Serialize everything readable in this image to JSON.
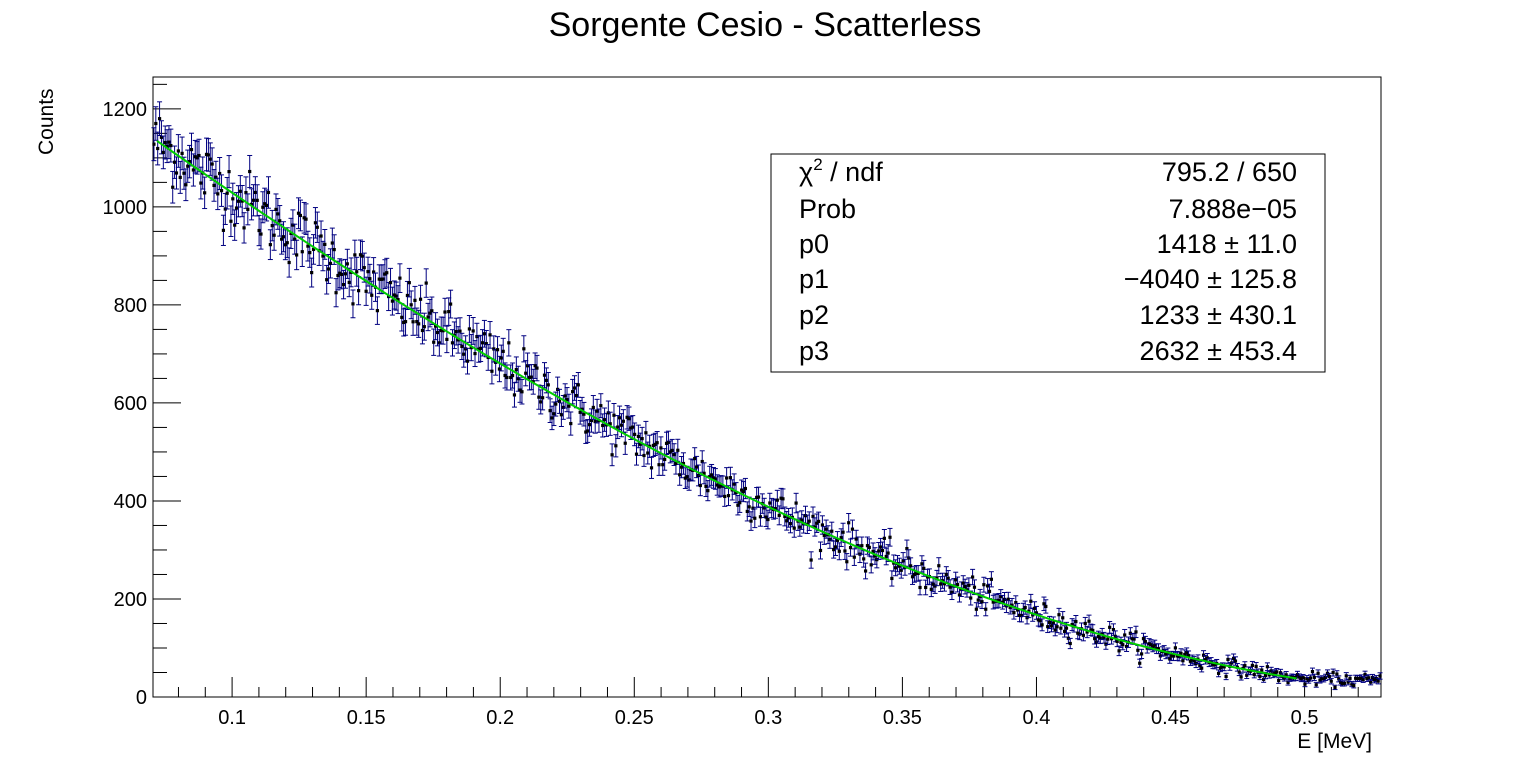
{
  "chart_data": {
    "type": "scatter",
    "title": "Sorgente Cesio - Scatterless",
    "xlabel": "E [MeV]",
    "ylabel": "Counts",
    "xlim": [
      0.0705,
      0.5285
    ],
    "ylim": [
      0,
      1265
    ],
    "x_ticks": [
      "0.1",
      "0.15",
      "0.2",
      "0.25",
      "0.3",
      "0.35",
      "0.4",
      "0.45",
      "0.5"
    ],
    "y_ticks": [
      "0",
      "200",
      "400",
      "600",
      "800",
      "1000",
      "1200"
    ],
    "grid": false,
    "series": [
      {
        "kind": "histogram-points-with-errors",
        "x_range": [
          0.0705,
          0.5285
        ],
        "points_shown": 654,
        "approx_points": [
          [
            0.072,
            1090
          ],
          [
            0.075,
            1170
          ],
          [
            0.08,
            1060
          ],
          [
            0.09,
            1080
          ],
          [
            0.1,
            1035
          ],
          [
            0.12,
            970
          ],
          [
            0.15,
            850
          ],
          [
            0.16,
            900
          ],
          [
            0.2,
            700
          ],
          [
            0.25,
            540
          ],
          [
            0.3,
            390
          ],
          [
            0.35,
            275
          ],
          [
            0.4,
            150
          ],
          [
            0.45,
            75
          ],
          [
            0.5,
            40
          ],
          [
            0.528,
            35
          ]
        ],
        "color": "#000080"
      },
      {
        "kind": "fit",
        "function": "pol3",
        "x_range": [
          0.072,
          0.497
        ],
        "color": "#00cc00"
      }
    ],
    "stats_box": {
      "rows": [
        {
          "label": "ndf",
          "chi_symbol": "χ",
          "sup": "2",
          "sep": " / ",
          "value": "795.2 / 650"
        },
        {
          "label": "Prob",
          "value": "7.888e−05"
        },
        {
          "label": "p0",
          "value": "1418 ± 11.0"
        },
        {
          "label": "p1",
          "value": "−4040 ± 125.8"
        },
        {
          "label": "p2",
          "value": "1233 ± 430.1"
        },
        {
          "label": "p3",
          "value": "2632 ± 453.4"
        }
      ],
      "fit_params": {
        "p0": 1418,
        "p1": -4040,
        "p2": 1233,
        "p3": 2632
      },
      "placement": "top-right"
    }
  }
}
